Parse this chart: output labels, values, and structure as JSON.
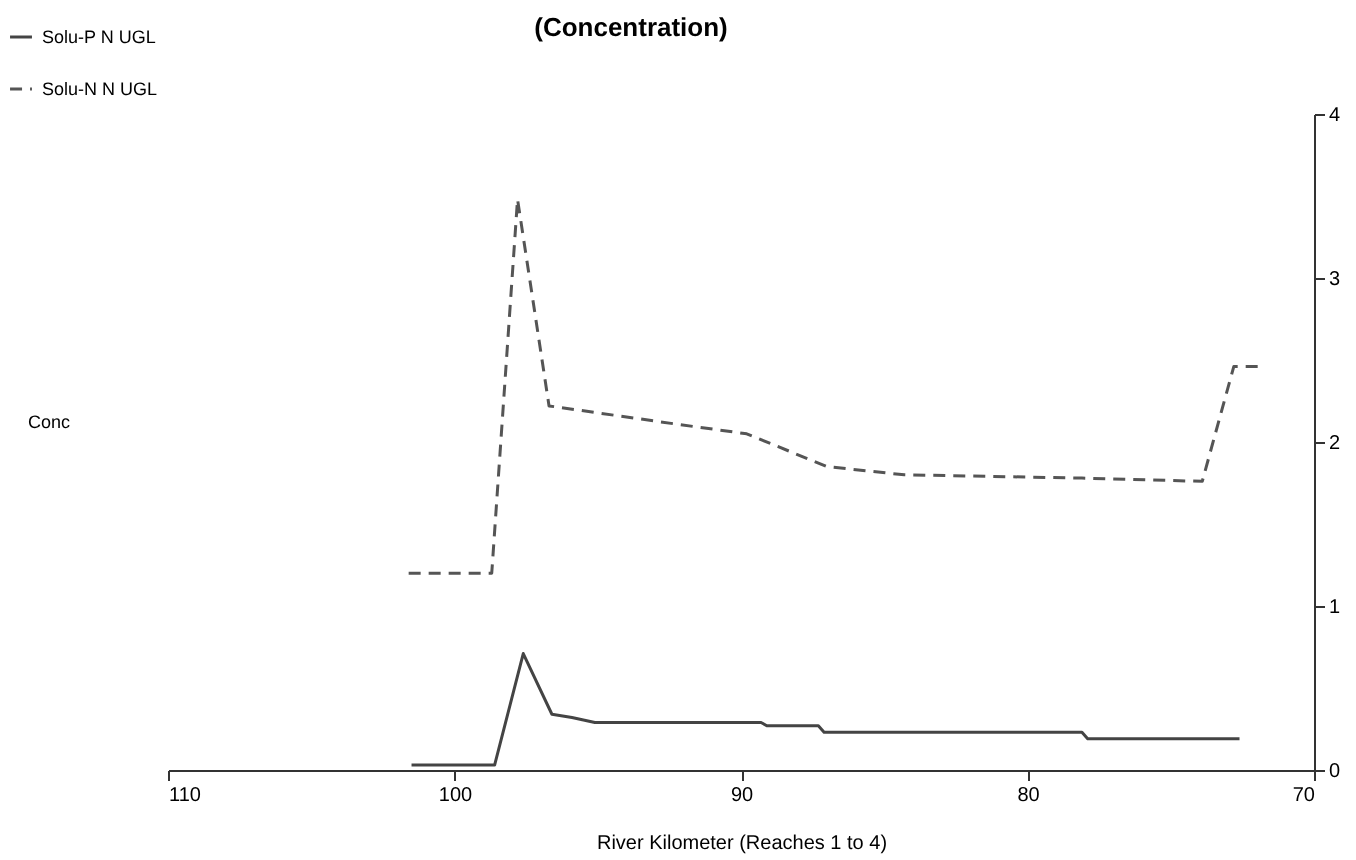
{
  "chart_data": {
    "type": "line",
    "title": "(Concentration)",
    "xlabel": "River Kilometer (Reaches 1 to 4)",
    "annotations": [
      "Conc"
    ],
    "xlim": [
      110,
      70
    ],
    "xticks": [
      110,
      100,
      90,
      80,
      70
    ],
    "ylim": [
      0,
      4
    ],
    "yticks": [
      0,
      1,
      2,
      3,
      4
    ],
    "grid": false,
    "legend": "top left",
    "marker": "none",
    "series": [
      {
        "name": "Solu-P N UGL",
        "color": "#444444",
        "line_style": "solid",
        "x": [
          101.5,
          98.6,
          97.6,
          96.6,
          95.9,
          95.1,
          89.3,
          89.1,
          87.3,
          87.1,
          78.1,
          77.9,
          72.6
        ],
        "values": [
          0.03,
          0.03,
          0.71,
          0.34,
          0.32,
          0.29,
          0.29,
          0.27,
          0.27,
          0.23,
          0.23,
          0.19,
          0.19
        ]
      },
      {
        "name": "Solu-N N UGL",
        "color": "#555555",
        "line_style": "dashed",
        "x": [
          101.6,
          98.7,
          97.8,
          96.7,
          92.3,
          89.8,
          87.0,
          84.3,
          78.1,
          73.9,
          72.8,
          71.9
        ],
        "values": [
          1.2,
          1.2,
          3.48,
          2.22,
          2.11,
          2.05,
          1.85,
          1.8,
          1.78,
          1.76,
          2.46,
          2.46
        ]
      }
    ]
  }
}
